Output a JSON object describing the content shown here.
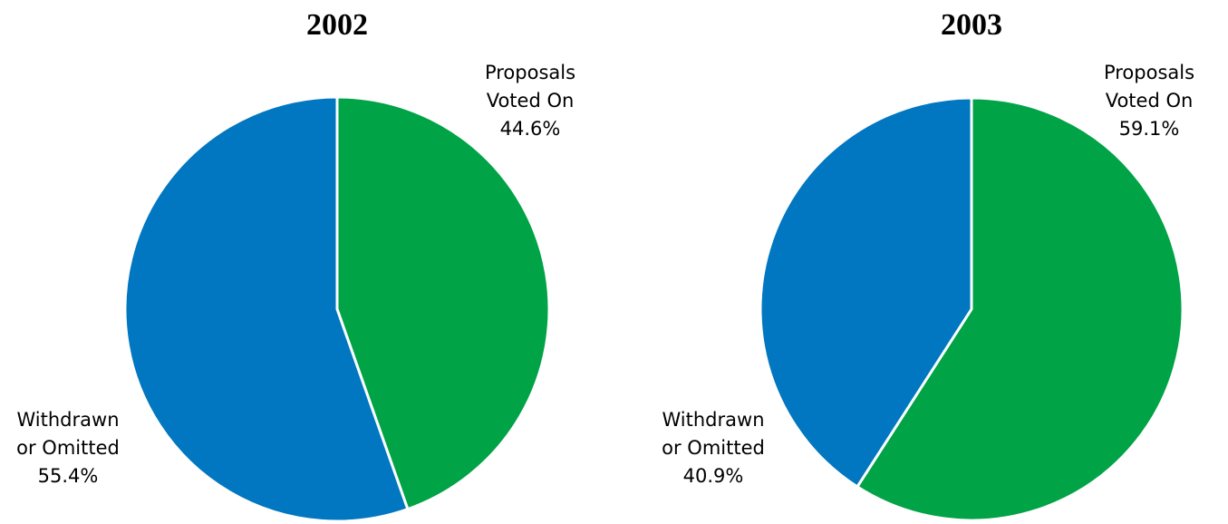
{
  "chart_data": [
    {
      "type": "pie",
      "title": "2002",
      "categories": [
        "Proposals Voted On",
        "Withdrawn or Omitted"
      ],
      "values": [
        44.6,
        55.4
      ],
      "value_labels": [
        "44.6%",
        "55.4%"
      ],
      "colors": [
        "#00a346",
        "#0077c0"
      ]
    },
    {
      "type": "pie",
      "title": "2003",
      "categories": [
        "Proposals Voted On",
        "Withdrawn or Omitted"
      ],
      "values": [
        59.1,
        40.9
      ],
      "value_labels": [
        "59.1%",
        "40.9%"
      ],
      "colors": [
        "#00a346",
        "#0077c0"
      ]
    }
  ]
}
